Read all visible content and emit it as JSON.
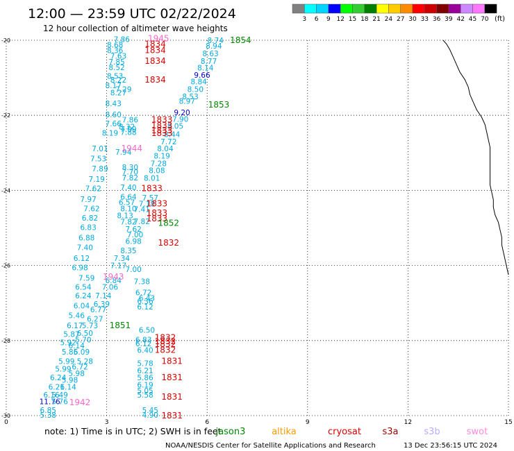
{
  "header": {
    "title": "12:00 — 23:59 UTC 02/22/2024",
    "subtitle": "12 hour collection of altimeter wave heights"
  },
  "legend": {
    "colors": [
      "#808080",
      "#00ffff",
      "#00d4ff",
      "#0000ff",
      "#00ff00",
      "#33cc33",
      "#008000",
      "#ffff00",
      "#ffcc00",
      "#ff8c00",
      "#ff0000",
      "#cc0000",
      "#800000",
      "#990099",
      "#cc88ff",
      "#ff77ff",
      "#000000"
    ],
    "labels": [
      "3",
      "6",
      "9",
      "12",
      "15",
      "18",
      "21",
      "24",
      "27",
      "30",
      "33",
      "36",
      "39",
      "42",
      "45",
      "70"
    ],
    "unit": "(ft)"
  },
  "map": {
    "lon_labels": [
      "0",
      "3",
      "6",
      "9",
      "12",
      "15"
    ],
    "lat_labels": [
      "-20",
      "-22",
      "-24",
      "-26",
      "-28",
      "-30"
    ],
    "lon_range": [
      0,
      15
    ],
    "lat_range": [
      -30,
      -20
    ]
  },
  "wave_values": [
    {
      "v": "7.86",
      "lon": 3.45,
      "lat": -19.97,
      "c": "#00aadd"
    },
    {
      "v": "8.68",
      "lon": 3.25,
      "lat": -20.12,
      "c": "#00aadd"
    },
    {
      "v": "8.36",
      "lon": 3.25,
      "lat": -20.27,
      "c": "#00aadd"
    },
    {
      "v": "7.63",
      "lon": 3.35,
      "lat": -20.42,
      "c": "#00aadd"
    },
    {
      "v": "7.85",
      "lon": 3.3,
      "lat": -20.57,
      "c": "#00aadd"
    },
    {
      "v": "8.52",
      "lon": 3.3,
      "lat": -20.72,
      "c": "#00aadd"
    },
    {
      "v": "8.53",
      "lon": 3.25,
      "lat": -20.95,
      "c": "#00aadd"
    },
    {
      "v": "8.22",
      "lon": 3.35,
      "lat": -21.05,
      "c": "#00aadd"
    },
    {
      "v": "8.17",
      "lon": 3.2,
      "lat": -21.2,
      "c": "#00aadd"
    },
    {
      "v": "7.29",
      "lon": 3.5,
      "lat": -21.3,
      "c": "#00aadd"
    },
    {
      "v": "8.27",
      "lon": 3.35,
      "lat": -21.4,
      "c": "#00aadd"
    },
    {
      "v": "8.43",
      "lon": 3.2,
      "lat": -21.68,
      "c": "#00aadd"
    },
    {
      "v": "8.60",
      "lon": 3.2,
      "lat": -21.98,
      "c": "#00aadd"
    },
    {
      "v": "7.86",
      "lon": 3.7,
      "lat": -22.12,
      "c": "#00aadd"
    },
    {
      "v": "7.66",
      "lon": 3.2,
      "lat": -22.22,
      "c": "#00aadd"
    },
    {
      "v": "8.32",
      "lon": 3.6,
      "lat": -22.3,
      "c": "#00aadd"
    },
    {
      "v": "7.99",
      "lon": 3.65,
      "lat": -22.37,
      "c": "#00aadd"
    },
    {
      "v": "8.19",
      "lon": 3.1,
      "lat": -22.47,
      "c": "#00aadd"
    },
    {
      "v": "7.88",
      "lon": 3.65,
      "lat": -22.45,
      "c": "#00aadd"
    },
    {
      "v": "7.01",
      "lon": 2.8,
      "lat": -22.88,
      "c": "#00aadd"
    },
    {
      "v": "7.94",
      "lon": 3.5,
      "lat": -22.98,
      "c": "#00aadd"
    },
    {
      "v": "7.53",
      "lon": 2.75,
      "lat": -23.15,
      "c": "#00aadd"
    },
    {
      "v": "8.30",
      "lon": 3.7,
      "lat": -23.38,
      "c": "#00aadd"
    },
    {
      "v": "7.89",
      "lon": 2.8,
      "lat": -23.42,
      "c": "#00aadd"
    },
    {
      "v": "7.70",
      "lon": 3.7,
      "lat": -23.5,
      "c": "#00aadd"
    },
    {
      "v": "7.19",
      "lon": 2.7,
      "lat": -23.7,
      "c": "#00aadd"
    },
    {
      "v": "7.82",
      "lon": 3.7,
      "lat": -23.66,
      "c": "#00aadd"
    },
    {
      "v": "7.62",
      "lon": 2.6,
      "lat": -23.95,
      "c": "#00aadd"
    },
    {
      "v": "7.40",
      "lon": 3.65,
      "lat": -23.92,
      "c": "#00aadd"
    },
    {
      "v": "7.97",
      "lon": 2.45,
      "lat": -24.23,
      "c": "#00aadd"
    },
    {
      "v": "6.64",
      "lon": 3.65,
      "lat": -24.17,
      "c": "#00aadd"
    },
    {
      "v": "6.57",
      "lon": 3.6,
      "lat": -24.32,
      "c": "#00aadd"
    },
    {
      "v": "7.62",
      "lon": 2.55,
      "lat": -24.48,
      "c": "#00aadd"
    },
    {
      "v": "8.10",
      "lon": 3.65,
      "lat": -24.48,
      "c": "#00aadd"
    },
    {
      "v": "6.82",
      "lon": 2.5,
      "lat": -24.73,
      "c": "#00aadd"
    },
    {
      "v": "8.13",
      "lon": 3.55,
      "lat": -24.67,
      "c": "#00aadd"
    },
    {
      "v": "7.82",
      "lon": 3.65,
      "lat": -24.83,
      "c": "#00aadd"
    },
    {
      "v": "6.83",
      "lon": 2.45,
      "lat": -24.98,
      "c": "#00aadd"
    },
    {
      "v": "7.62",
      "lon": 3.8,
      "lat": -25.03,
      "c": "#00aadd"
    },
    {
      "v": "6.88",
      "lon": 2.4,
      "lat": -25.26,
      "c": "#00aadd"
    },
    {
      "v": "7.00",
      "lon": 3.85,
      "lat": -25.18,
      "c": "#00aadd"
    },
    {
      "v": "6.98",
      "lon": 3.8,
      "lat": -25.35,
      "c": "#00aadd"
    },
    {
      "v": "7.40",
      "lon": 2.35,
      "lat": -25.52,
      "c": "#00aadd"
    },
    {
      "v": "8.35",
      "lon": 3.65,
      "lat": -25.6,
      "c": "#00aadd"
    },
    {
      "v": "6.12",
      "lon": 2.25,
      "lat": -25.8,
      "c": "#00aadd"
    },
    {
      "v": "7.34",
      "lon": 3.45,
      "lat": -25.8,
      "c": "#00aadd"
    },
    {
      "v": "6.98",
      "lon": 2.2,
      "lat": -26.05,
      "c": "#00aadd"
    },
    {
      "v": "7.17",
      "lon": 3.35,
      "lat": -26.0,
      "c": "#00aadd"
    },
    {
      "v": "7.00",
      "lon": 3.8,
      "lat": -26.1,
      "c": "#00aadd"
    },
    {
      "v": "7.59",
      "lon": 2.4,
      "lat": -26.33,
      "c": "#00aadd"
    },
    {
      "v": "6.84",
      "lon": 3.2,
      "lat": -26.4,
      "c": "#00aadd"
    },
    {
      "v": "7.38",
      "lon": 4.05,
      "lat": -26.42,
      "c": "#00aadd"
    },
    {
      "v": "6.54",
      "lon": 2.3,
      "lat": -26.57,
      "c": "#00aadd"
    },
    {
      "v": "7.06",
      "lon": 3.1,
      "lat": -26.57,
      "c": "#00aadd"
    },
    {
      "v": "6.24",
      "lon": 2.3,
      "lat": -26.8,
      "c": "#00aadd"
    },
    {
      "v": "7.14",
      "lon": 2.9,
      "lat": -26.8,
      "c": "#00aadd"
    },
    {
      "v": "6.72",
      "lon": 4.1,
      "lat": -26.72,
      "c": "#00aadd"
    },
    {
      "v": "6.43",
      "lon": 4.2,
      "lat": -26.87,
      "c": "#00aadd"
    },
    {
      "v": "6.39",
      "lon": 2.85,
      "lat": -27.02,
      "c": "#00aadd"
    },
    {
      "v": "6.36",
      "lon": 4.15,
      "lat": -26.95,
      "c": "#00aadd"
    },
    {
      "v": "6.04",
      "lon": 2.25,
      "lat": -27.07,
      "c": "#00aadd"
    },
    {
      "v": "6.12",
      "lon": 4.15,
      "lat": -27.1,
      "c": "#00aadd"
    },
    {
      "v": "6.77",
      "lon": 2.75,
      "lat": -27.17,
      "c": "#00aadd"
    },
    {
      "v": "5.46",
      "lon": 2.1,
      "lat": -27.33,
      "c": "#00aadd"
    },
    {
      "v": "6.27",
      "lon": 2.65,
      "lat": -27.42,
      "c": "#00aadd"
    },
    {
      "v": "6.17",
      "lon": 2.05,
      "lat": -27.6,
      "c": "#00aadd"
    },
    {
      "v": "5.73",
      "lon": 2.5,
      "lat": -27.6,
      "c": "#00aadd"
    },
    {
      "v": "6.50",
      "lon": 4.2,
      "lat": -27.72,
      "c": "#00aadd"
    },
    {
      "v": "5.87",
      "lon": 1.95,
      "lat": -27.83,
      "c": "#00aadd"
    },
    {
      "v": "6.50",
      "lon": 2.35,
      "lat": -27.8,
      "c": "#00aadd"
    },
    {
      "v": "5.70",
      "lon": 2.3,
      "lat": -27.98,
      "c": "#00aadd"
    },
    {
      "v": "5.92",
      "lon": 1.85,
      "lat": -28.05,
      "c": "#00aadd"
    },
    {
      "v": "6.83",
      "lon": 4.1,
      "lat": -27.98,
      "c": "#00aadd"
    },
    {
      "v": "6.14",
      "lon": 2.1,
      "lat": -28.13,
      "c": "#00aadd"
    },
    {
      "v": "6.12",
      "lon": 4.1,
      "lat": -28.08,
      "c": "#00aadd"
    },
    {
      "v": "5.85",
      "lon": 1.9,
      "lat": -28.3,
      "c": "#00aadd"
    },
    {
      "v": "6.09",
      "lon": 2.25,
      "lat": -28.3,
      "c": "#00aadd"
    },
    {
      "v": "6.40",
      "lon": 4.15,
      "lat": -28.25,
      "c": "#00aadd"
    },
    {
      "v": "5.99",
      "lon": 1.8,
      "lat": -28.55,
      "c": "#00aadd"
    },
    {
      "v": "5.28",
      "lon": 2.35,
      "lat": -28.55,
      "c": "#00aadd"
    },
    {
      "v": "5.78",
      "lon": 4.15,
      "lat": -28.6,
      "c": "#00aadd"
    },
    {
      "v": "5.99",
      "lon": 1.7,
      "lat": -28.75,
      "c": "#00aadd"
    },
    {
      "v": "6.72",
      "lon": 2.2,
      "lat": -28.7,
      "c": "#00aadd"
    },
    {
      "v": "6.21",
      "lon": 4.15,
      "lat": -28.8,
      "c": "#00aadd"
    },
    {
      "v": "5.98",
      "lon": 2.1,
      "lat": -28.87,
      "c": "#00aadd"
    },
    {
      "v": "6.24",
      "lon": 1.55,
      "lat": -28.98,
      "c": "#00aadd"
    },
    {
      "v": "5.86",
      "lon": 4.15,
      "lat": -28.98,
      "c": "#00aadd"
    },
    {
      "v": "5.98",
      "lon": 1.9,
      "lat": -29.05,
      "c": "#00aadd"
    },
    {
      "v": "6.21",
      "lon": 1.5,
      "lat": -29.23,
      "c": "#00aadd"
    },
    {
      "v": "6.14",
      "lon": 1.85,
      "lat": -29.23,
      "c": "#00aadd"
    },
    {
      "v": "6.19",
      "lon": 4.15,
      "lat": -29.18,
      "c": "#00aadd"
    },
    {
      "v": "5.05",
      "lon": 4.15,
      "lat": -29.33,
      "c": "#00aadd"
    },
    {
      "v": "5.49",
      "lon": 1.6,
      "lat": -29.45,
      "c": "#00aadd"
    },
    {
      "v": "5.58",
      "lon": 4.15,
      "lat": -29.45,
      "c": "#00aadd"
    },
    {
      "v": "6.16",
      "lon": 1.35,
      "lat": -29.45,
      "c": "#00aadd"
    },
    {
      "v": "11.76",
      "lon": 1.3,
      "lat": -29.62,
      "c": "#0000cc"
    },
    {
      "v": "5.76",
      "lon": 1.6,
      "lat": -29.62,
      "c": "#00aadd"
    },
    {
      "v": "6.85",
      "lon": 1.25,
      "lat": -29.85,
      "c": "#00aadd"
    },
    {
      "v": "5.45",
      "lon": 4.3,
      "lat": -29.85,
      "c": "#00aadd"
    },
    {
      "v": "5.38",
      "lon": 1.25,
      "lat": -29.98,
      "c": "#00aadd"
    },
    {
      "v": "4.90",
      "lon": 4.3,
      "lat": -29.98,
      "c": "#00aadd"
    },
    {
      "v": "8.74",
      "lon": 6.25,
      "lat": -20.0,
      "c": "#00aadd"
    },
    {
      "v": "8.94",
      "lon": 6.2,
      "lat": -20.15,
      "c": "#00aadd"
    },
    {
      "v": "8.63",
      "lon": 6.1,
      "lat": -20.35,
      "c": "#00aadd"
    },
    {
      "v": "8.77",
      "lon": 6.05,
      "lat": -20.55,
      "c": "#00aadd"
    },
    {
      "v": "8.14",
      "lon": 5.95,
      "lat": -20.73,
      "c": "#00aadd"
    },
    {
      "v": "9.66",
      "lon": 5.85,
      "lat": -20.92,
      "c": "#0000cc"
    },
    {
      "v": "8.84",
      "lon": 5.75,
      "lat": -21.1,
      "c": "#00aadd"
    },
    {
      "v": "8.50",
      "lon": 5.65,
      "lat": -21.3,
      "c": "#00aadd"
    },
    {
      "v": "8.53",
      "lon": 5.5,
      "lat": -21.5,
      "c": "#00aadd"
    },
    {
      "v": "8.97",
      "lon": 5.4,
      "lat": -21.62,
      "c": "#00aadd"
    },
    {
      "v": "9.20",
      "lon": 5.25,
      "lat": -21.92,
      "c": "#0000cc"
    },
    {
      "v": "7.90",
      "lon": 5.2,
      "lat": -22.1,
      "c": "#00aadd"
    },
    {
      "v": "8.05",
      "lon": 5.05,
      "lat": -22.28,
      "c": "#00aadd"
    },
    {
      "v": "8.44",
      "lon": 4.95,
      "lat": -22.5,
      "c": "#00aadd"
    },
    {
      "v": "7.72",
      "lon": 4.85,
      "lat": -22.7,
      "c": "#00aadd"
    },
    {
      "v": "8.04",
      "lon": 4.75,
      "lat": -22.88,
      "c": "#00aadd"
    },
    {
      "v": "8.19",
      "lon": 4.65,
      "lat": -23.08,
      "c": "#00aadd"
    },
    {
      "v": "7.28",
      "lon": 4.55,
      "lat": -23.28,
      "c": "#00aadd"
    },
    {
      "v": "8.08",
      "lon": 4.5,
      "lat": -23.47,
      "c": "#00aadd"
    },
    {
      "v": "8.01",
      "lon": 4.35,
      "lat": -23.67,
      "c": "#00aadd"
    },
    {
      "v": "7.57",
      "lon": 4.3,
      "lat": -24.2,
      "c": "#00aadd"
    },
    {
      "v": "7.18",
      "lon": 4.2,
      "lat": -24.35,
      "c": "#00aadd"
    },
    {
      "v": "7.41",
      "lon": 4.05,
      "lat": -24.5,
      "c": "#00aadd"
    },
    {
      "v": "7.82",
      "lon": 4.05,
      "lat": -24.82,
      "c": "#00aadd"
    }
  ],
  "pass_labels": [
    {
      "t": "1945",
      "lon": 4.55,
      "lat": -19.95,
      "c": "#ff66cc"
    },
    {
      "t": "1834",
      "lon": 4.45,
      "lat": -20.1,
      "c": "#dd0000"
    },
    {
      "t": "1834",
      "lon": 4.45,
      "lat": -20.27,
      "c": "#dd0000"
    },
    {
      "t": "1834",
      "lon": 4.45,
      "lat": -20.55,
      "c": "#dd0000"
    },
    {
      "t": "1834",
      "lon": 4.45,
      "lat": -21.05,
      "c": "#dd0000"
    },
    {
      "t": "1854",
      "lon": 7.0,
      "lat": -20.0,
      "c": "#008800"
    },
    {
      "t": "1853",
      "lon": 6.35,
      "lat": -21.72,
      "c": "#008800"
    },
    {
      "t": "1833",
      "lon": 4.65,
      "lat": -22.12,
      "c": "#dd0000"
    },
    {
      "t": "1833",
      "lon": 4.65,
      "lat": -22.27,
      "c": "#dd0000"
    },
    {
      "t": "1833",
      "lon": 4.65,
      "lat": -22.4,
      "c": "#dd0000"
    },
    {
      "t": "1833",
      "lon": 4.65,
      "lat": -22.48,
      "c": "#dd0000"
    },
    {
      "t": "1944",
      "lon": 3.75,
      "lat": -22.88,
      "c": "#ff66cc"
    },
    {
      "t": "1833",
      "lon": 4.35,
      "lat": -23.95,
      "c": "#dd0000"
    },
    {
      "t": "1833",
      "lon": 4.5,
      "lat": -24.35,
      "c": "#dd0000"
    },
    {
      "t": "1833",
      "lon": 4.5,
      "lat": -24.6,
      "c": "#dd0000"
    },
    {
      "t": "1833",
      "lon": 4.5,
      "lat": -24.75,
      "c": "#dd0000"
    },
    {
      "t": "1852",
      "lon": 4.85,
      "lat": -24.87,
      "c": "#008800"
    },
    {
      "t": "1832",
      "lon": 4.85,
      "lat": -25.4,
      "c": "#dd0000"
    },
    {
      "t": "1943",
      "lon": 3.2,
      "lat": -26.3,
      "c": "#ff66cc"
    },
    {
      "t": "1851",
      "lon": 3.4,
      "lat": -27.6,
      "c": "#008800"
    },
    {
      "t": "1832",
      "lon": 4.75,
      "lat": -27.92,
      "c": "#dd0000"
    },
    {
      "t": "1832",
      "lon": 4.75,
      "lat": -28.02,
      "c": "#dd0000"
    },
    {
      "t": "1832",
      "lon": 4.75,
      "lat": -28.1,
      "c": "#dd0000"
    },
    {
      "t": "1832",
      "lon": 4.75,
      "lat": -28.25,
      "c": "#dd0000"
    },
    {
      "t": "1831",
      "lon": 4.95,
      "lat": -28.55,
      "c": "#dd0000"
    },
    {
      "t": "1831",
      "lon": 4.95,
      "lat": -28.98,
      "c": "#dd0000"
    },
    {
      "t": "1831",
      "lon": 4.95,
      "lat": -29.5,
      "c": "#dd0000"
    },
    {
      "t": "1942",
      "lon": 2.2,
      "lat": -29.65,
      "c": "#ff66cc"
    },
    {
      "t": "1831",
      "lon": 4.95,
      "lat": -30.0,
      "c": "#dd0000"
    }
  ],
  "coastline": [
    [
      13.05,
      -20.0
    ],
    [
      13.15,
      -20.1
    ],
    [
      13.25,
      -20.25
    ],
    [
      13.35,
      -20.45
    ],
    [
      13.45,
      -20.65
    ],
    [
      13.55,
      -20.85
    ],
    [
      13.7,
      -21.05
    ],
    [
      13.8,
      -21.25
    ],
    [
      13.85,
      -21.45
    ],
    [
      13.95,
      -21.65
    ],
    [
      14.05,
      -21.85
    ],
    [
      14.2,
      -22.05
    ],
    [
      14.3,
      -22.25
    ],
    [
      14.35,
      -22.45
    ],
    [
      14.4,
      -22.65
    ],
    [
      14.45,
      -22.85
    ],
    [
      14.45,
      -23.05
    ],
    [
      14.45,
      -23.25
    ],
    [
      14.45,
      -23.45
    ],
    [
      14.45,
      -23.65
    ],
    [
      14.45,
      -23.85
    ],
    [
      14.5,
      -24.05
    ],
    [
      14.55,
      -24.25
    ],
    [
      14.55,
      -24.45
    ],
    [
      14.6,
      -24.65
    ],
    [
      14.7,
      -24.85
    ],
    [
      14.75,
      -25.05
    ],
    [
      14.8,
      -25.25
    ],
    [
      14.8,
      -25.45
    ],
    [
      14.85,
      -25.65
    ],
    [
      14.9,
      -25.85
    ],
    [
      14.95,
      -26.05
    ],
    [
      15.0,
      -26.25
    ]
  ],
  "note": "note:  1) Time is in UTC; 2) SWH is in feet",
  "satellites": [
    {
      "name": "jason3",
      "c": "#008800"
    },
    {
      "name": "altika",
      "c": "#ff9900"
    },
    {
      "name": "cryosat",
      "c": "#dd0000"
    },
    {
      "name": "s3a",
      "c": "#990000"
    },
    {
      "name": "s3b",
      "c": "#bbaaff"
    },
    {
      "name": "swot",
      "c": "#ff88dd"
    }
  ],
  "footer": {
    "credit": "NOAA/NESDIS Center for Satellite Applications and Research",
    "timestamp": "13 Dec 23:56:15 UTC 2024"
  }
}
